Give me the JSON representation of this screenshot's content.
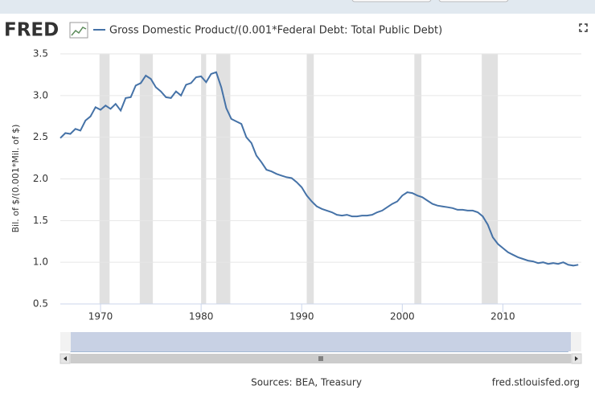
{
  "logo": "FRED",
  "chart_data": {
    "type": "line",
    "y_label": "Bil. of $/(0.001*Mil. of $)",
    "source": "Sources: BEA, Treasury",
    "credit": "fred.stlouisfed.org",
    "x": [
      1966,
      1966.5,
      1967,
      1967.5,
      1968,
      1968.5,
      1969,
      1969.5,
      1970,
      1970.5,
      1971,
      1971.5,
      1972,
      1972.5,
      1973,
      1973.5,
      1974,
      1974.5,
      1975,
      1975.5,
      1976,
      1976.5,
      1977,
      1977.5,
      1978,
      1978.5,
      1979,
      1979.5,
      1980,
      1980.5,
      1981,
      1981.5,
      1982,
      1982.5,
      1983,
      1983.5,
      1984,
      1984.5,
      1985,
      1985.5,
      1986,
      1986.5,
      1987,
      1987.5,
      1988,
      1988.5,
      1989,
      1989.5,
      1990,
      1990.5,
      1991,
      1991.5,
      1992,
      1992.5,
      1993,
      1993.5,
      1994,
      1994.5,
      1995,
      1995.5,
      1996,
      1996.5,
      1997,
      1997.5,
      1998,
      1998.5,
      1999,
      1999.5,
      2000,
      2000.5,
      2001,
      2001.5,
      2002,
      2002.5,
      2003,
      2003.5,
      2004,
      2004.5,
      2005,
      2005.5,
      2006,
      2006.5,
      2007,
      2007.5,
      2008,
      2008.5,
      2009,
      2009.5,
      2010,
      2010.5,
      2011,
      2011.5,
      2012,
      2012.5,
      2013,
      2013.5,
      2014,
      2014.5,
      2015,
      2015.5,
      2016,
      2016.5,
      2017,
      2017.5
    ],
    "series": [
      {
        "name": "Gross Domestic Product/(0.001*Federal Debt: Total Public Debt)",
        "color": "#4572a7",
        "values": [
          2.49,
          2.55,
          2.54,
          2.6,
          2.58,
          2.7,
          2.75,
          2.86,
          2.83,
          2.88,
          2.84,
          2.9,
          2.82,
          2.97,
          2.98,
          3.12,
          3.15,
          3.24,
          3.2,
          3.1,
          3.05,
          2.98,
          2.97,
          3.05,
          3.0,
          3.13,
          3.15,
          3.22,
          3.23,
          3.16,
          3.26,
          3.28,
          3.1,
          2.85,
          2.72,
          2.69,
          2.66,
          2.5,
          2.43,
          2.28,
          2.2,
          2.11,
          2.09,
          2.06,
          2.04,
          2.02,
          2.01,
          1.96,
          1.9,
          1.8,
          1.73,
          1.67,
          1.64,
          1.62,
          1.6,
          1.57,
          1.56,
          1.57,
          1.55,
          1.55,
          1.56,
          1.56,
          1.57,
          1.6,
          1.62,
          1.66,
          1.7,
          1.73,
          1.8,
          1.84,
          1.83,
          1.8,
          1.78,
          1.74,
          1.7,
          1.68,
          1.67,
          1.66,
          1.65,
          1.63,
          1.63,
          1.62,
          1.62,
          1.6,
          1.55,
          1.45,
          1.3,
          1.22,
          1.17,
          1.12,
          1.09,
          1.06,
          1.04,
          1.02,
          1.01,
          0.99,
          1.0,
          0.98,
          0.99,
          0.98,
          1.0,
          0.97,
          0.96,
          0.97
        ]
      }
    ],
    "recessions": [
      [
        1969.9,
        1970.9
      ],
      [
        1973.9,
        1975.2
      ],
      [
        1980.0,
        1980.5
      ],
      [
        1981.5,
        1982.9
      ],
      [
        1990.5,
        1991.2
      ],
      [
        2001.2,
        2001.9
      ],
      [
        2007.9,
        2009.5
      ]
    ],
    "recession_color": "#e1e1e1",
    "xlim": [
      1966,
      2017.8
    ],
    "xticks": [
      1970,
      1980,
      1990,
      2000,
      2010
    ],
    "ylim": [
      0.5,
      3.5
    ],
    "yticks": [
      0.5,
      {
        "value": 1,
        "label": "1.0"
      },
      1.5,
      {
        "value": 2,
        "label": "2.0"
      },
      2.5,
      {
        "value": 3,
        "label": "3.0"
      },
      3.5
    ],
    "navigator_ticks": [
      1980,
      2000
    ],
    "grid": true
  }
}
